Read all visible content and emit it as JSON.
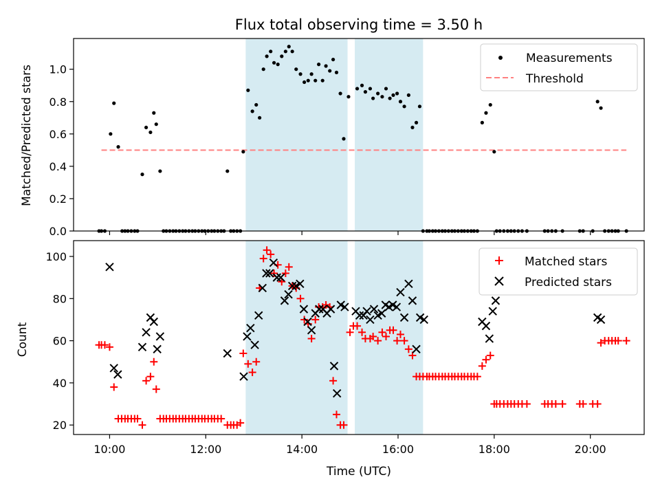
{
  "title": "Flux total observing time = 3.50 h",
  "chart_data": [
    {
      "type": "scatter",
      "ylabel": "Matched/Predicted stars",
      "xlim": [
        9.25,
        21.12
      ],
      "ylim": [
        0,
        1.19
      ],
      "yticks": [
        0.0,
        0.2,
        0.4,
        0.6,
        0.8,
        1.0
      ],
      "ytick_labels": [
        "0.0",
        "0.2",
        "0.4",
        "0.6",
        "0.8",
        "1.0"
      ],
      "legend": [
        "Measurements",
        "Threshold"
      ],
      "legend_position": "top-right",
      "threshold": {
        "name": "Threshold",
        "y": 0.5,
        "x_start": 9.83,
        "x_end": 20.75,
        "color": "#ff8080"
      },
      "highlight_spans": [
        [
          12.83,
          14.95
        ],
        [
          15.1,
          16.52
        ]
      ],
      "measurements": {
        "name": "Measurements",
        "color": "#000000",
        "x": [
          9.78,
          9.83,
          9.9,
          10.02,
          10.09,
          10.18,
          10.26,
          10.32,
          10.38,
          10.45,
          10.52,
          10.58,
          10.68,
          10.76,
          10.85,
          10.92,
          10.97,
          11.05,
          11.12,
          11.18,
          11.25,
          11.32,
          11.38,
          11.45,
          11.52,
          11.58,
          11.65,
          11.72,
          11.78,
          11.85,
          11.92,
          11.98,
          12.05,
          12.12,
          12.18,
          12.25,
          12.32,
          12.38,
          12.45,
          12.52,
          12.58,
          12.65,
          12.72,
          12.78,
          12.88,
          12.97,
          13.05,
          13.12,
          13.2,
          13.27,
          13.35,
          13.42,
          13.5,
          13.58,
          13.66,
          13.73,
          13.8,
          13.88,
          13.97,
          14.05,
          14.13,
          14.2,
          14.28,
          14.35,
          14.43,
          14.5,
          14.58,
          14.65,
          14.72,
          14.8,
          14.87,
          14.97,
          15.15,
          15.25,
          15.32,
          15.42,
          15.48,
          15.58,
          15.67,
          15.75,
          15.83,
          15.9,
          15.98,
          16.05,
          16.13,
          16.22,
          16.3,
          16.38,
          16.45,
          16.52,
          16.6,
          16.65,
          16.72,
          16.78,
          16.85,
          16.92,
          16.98,
          17.05,
          17.12,
          17.18,
          17.25,
          17.32,
          17.38,
          17.45,
          17.52,
          17.58,
          17.65,
          17.75,
          17.83,
          17.92,
          18.0,
          18.05,
          18.12,
          18.2,
          18.28,
          18.35,
          18.42,
          18.5,
          18.58,
          18.68,
          19.05,
          19.12,
          19.2,
          19.28,
          19.42,
          19.78,
          19.85,
          20.05,
          20.15,
          20.22,
          20.3,
          20.38,
          20.45,
          20.52,
          20.58,
          20.75
        ],
        "y": [
          0.0,
          0.0,
          0.0,
          0.6,
          0.79,
          0.52,
          0.0,
          0.0,
          0.0,
          0.0,
          0.0,
          0.0,
          0.35,
          0.64,
          0.61,
          0.73,
          0.66,
          0.37,
          0.0,
          0.0,
          0.0,
          0.0,
          0.0,
          0.0,
          0.0,
          0.0,
          0.0,
          0.0,
          0.0,
          0.0,
          0.0,
          0.0,
          0.0,
          0.0,
          0.0,
          0.0,
          0.0,
          0.0,
          0.37,
          0.0,
          0.0,
          0.0,
          0.0,
          0.49,
          0.87,
          0.74,
          0.78,
          0.7,
          1.0,
          1.08,
          1.11,
          1.04,
          1.03,
          1.08,
          1.11,
          1.14,
          1.11,
          1.0,
          0.97,
          0.92,
          0.93,
          0.97,
          0.93,
          1.03,
          0.93,
          1.02,
          0.99,
          1.06,
          0.98,
          0.85,
          0.57,
          0.83,
          0.88,
          0.9,
          0.86,
          0.88,
          0.82,
          0.85,
          0.83,
          0.88,
          0.82,
          0.84,
          0.85,
          0.8,
          0.77,
          0.84,
          0.64,
          0.67,
          0.77,
          0.0,
          0.0,
          0.0,
          0.0,
          0.0,
          0.0,
          0.0,
          0.0,
          0.0,
          0.0,
          0.0,
          0.0,
          0.0,
          0.0,
          0.0,
          0.0,
          0.0,
          0.0,
          0.67,
          0.73,
          0.78,
          0.49,
          0.0,
          0.0,
          0.0,
          0.0,
          0.0,
          0.0,
          0.0,
          0.0,
          0.0,
          0.0,
          0.0,
          0.0,
          0.0,
          0.0,
          0.0,
          0.0,
          0.0,
          0.8,
          0.76,
          0.0,
          0.0,
          0.0,
          0.0,
          0.0,
          0.0
        ]
      }
    },
    {
      "type": "scatter",
      "xlabel": "Time (UTC)",
      "ylabel": "Count",
      "xlim": [
        9.25,
        21.12
      ],
      "ylim": [
        15.5,
        107.5
      ],
      "xticks": [
        10,
        12,
        14,
        16,
        18,
        20
      ],
      "xtick_labels": [
        "10:00",
        "12:00",
        "14:00",
        "16:00",
        "18:00",
        "20:00"
      ],
      "yticks": [
        20,
        40,
        60,
        80,
        100
      ],
      "ytick_labels": [
        "20",
        "40",
        "60",
        "80",
        "100"
      ],
      "legend": [
        "Matched stars",
        "Predicted stars"
      ],
      "legend_position": "top-right",
      "highlight_spans": [
        [
          12.83,
          14.95
        ],
        [
          15.1,
          16.52
        ]
      ],
      "matched": {
        "name": "Matched stars",
        "color": "#ff0000",
        "marker": "+",
        "x": [
          9.78,
          9.83,
          9.9,
          10.0,
          10.09,
          10.18,
          10.25,
          10.32,
          10.38,
          10.45,
          10.52,
          10.58,
          10.68,
          10.76,
          10.85,
          10.92,
          10.97,
          11.05,
          11.12,
          11.18,
          11.25,
          11.32,
          11.38,
          11.45,
          11.52,
          11.58,
          11.65,
          11.72,
          11.78,
          11.85,
          11.92,
          11.98,
          12.05,
          12.12,
          12.18,
          12.25,
          12.32,
          12.45,
          12.52,
          12.58,
          12.65,
          12.72,
          12.78,
          12.88,
          12.97,
          13.05,
          13.12,
          13.2,
          13.27,
          13.35,
          13.42,
          13.5,
          13.58,
          13.66,
          13.73,
          13.8,
          13.88,
          13.97,
          14.05,
          14.13,
          14.2,
          14.28,
          14.35,
          14.43,
          14.5,
          14.58,
          14.65,
          14.72,
          14.8,
          14.87,
          15.0,
          15.07,
          15.15,
          15.25,
          15.32,
          15.42,
          15.48,
          15.58,
          15.67,
          15.75,
          15.83,
          15.9,
          15.98,
          16.05,
          16.13,
          16.22,
          16.3,
          16.38,
          16.45,
          16.52,
          16.6,
          16.65,
          16.72,
          16.78,
          16.85,
          16.92,
          16.98,
          17.05,
          17.12,
          17.18,
          17.25,
          17.32,
          17.38,
          17.45,
          17.52,
          17.58,
          17.65,
          17.75,
          17.83,
          17.92,
          18.0,
          18.05,
          18.12,
          18.2,
          18.28,
          18.35,
          18.42,
          18.5,
          18.58,
          18.68,
          19.05,
          19.12,
          19.2,
          19.28,
          19.42,
          19.78,
          19.85,
          20.05,
          20.15,
          20.22,
          20.3,
          20.38,
          20.45,
          20.52,
          20.58,
          20.75
        ],
        "y": [
          58,
          58,
          58,
          57,
          38,
          23,
          23,
          23,
          23,
          23,
          23,
          23,
          20,
          41,
          43,
          50,
          37,
          23,
          23,
          23,
          23,
          23,
          23,
          23,
          23,
          23,
          23,
          23,
          23,
          23,
          23,
          23,
          23,
          23,
          23,
          23,
          23,
          20,
          20,
          20,
          20,
          21,
          54,
          49,
          45,
          50,
          85,
          99,
          103,
          101,
          92,
          96,
          88,
          92,
          95,
          86,
          85,
          80,
          70,
          68,
          61,
          70,
          76,
          76,
          77,
          76,
          41,
          25,
          20,
          20,
          64,
          67,
          67,
          64,
          61,
          61,
          62,
          60,
          64,
          62,
          65,
          65,
          60,
          63,
          60,
          56,
          53,
          43,
          43,
          43,
          43,
          43,
          43,
          43,
          43,
          43,
          43,
          43,
          43,
          43,
          43,
          43,
          43,
          43,
          43,
          43,
          43,
          48,
          51,
          53,
          30,
          30,
          30,
          30,
          30,
          30,
          30,
          30,
          30,
          30,
          30,
          30,
          30,
          30,
          30,
          30,
          30,
          30,
          30,
          59,
          60,
          60,
          60,
          60,
          60,
          60
        ]
      },
      "predicted": {
        "name": "Predicted stars",
        "color": "#000000",
        "marker": "x",
        "x": [
          10.0,
          10.09,
          10.17,
          10.68,
          10.76,
          10.85,
          10.92,
          10.99,
          11.05,
          12.45,
          12.79,
          12.86,
          12.93,
          13.02,
          13.1,
          13.18,
          13.26,
          13.33,
          13.41,
          13.48,
          13.56,
          13.64,
          13.72,
          13.8,
          13.88,
          13.96,
          14.04,
          14.12,
          14.2,
          14.28,
          14.36,
          14.44,
          14.52,
          14.6,
          14.67,
          14.73,
          14.81,
          14.89,
          15.12,
          15.2,
          15.28,
          15.35,
          15.42,
          15.5,
          15.58,
          15.66,
          15.74,
          15.81,
          15.89,
          15.97,
          16.05,
          16.13,
          16.22,
          16.3,
          16.38,
          16.46,
          16.54,
          17.75,
          17.83,
          17.9,
          17.97,
          18.03,
          20.15,
          20.22
        ],
        "y": [
          95,
          47,
          44,
          57,
          64,
          71,
          69,
          56,
          62,
          54,
          43,
          62,
          66,
          58,
          72,
          85,
          92,
          92,
          97,
          90,
          90,
          79,
          82,
          86,
          86,
          87,
          75,
          69,
          65,
          73,
          75,
          75,
          73,
          75,
          48,
          35,
          77,
          76,
          74,
          72,
          72,
          74,
          70,
          75,
          72,
          73,
          77,
          76,
          77,
          76,
          83,
          71,
          87,
          79,
          56,
          71,
          70,
          69,
          67,
          61,
          74,
          79,
          71,
          70
        ]
      }
    }
  ]
}
